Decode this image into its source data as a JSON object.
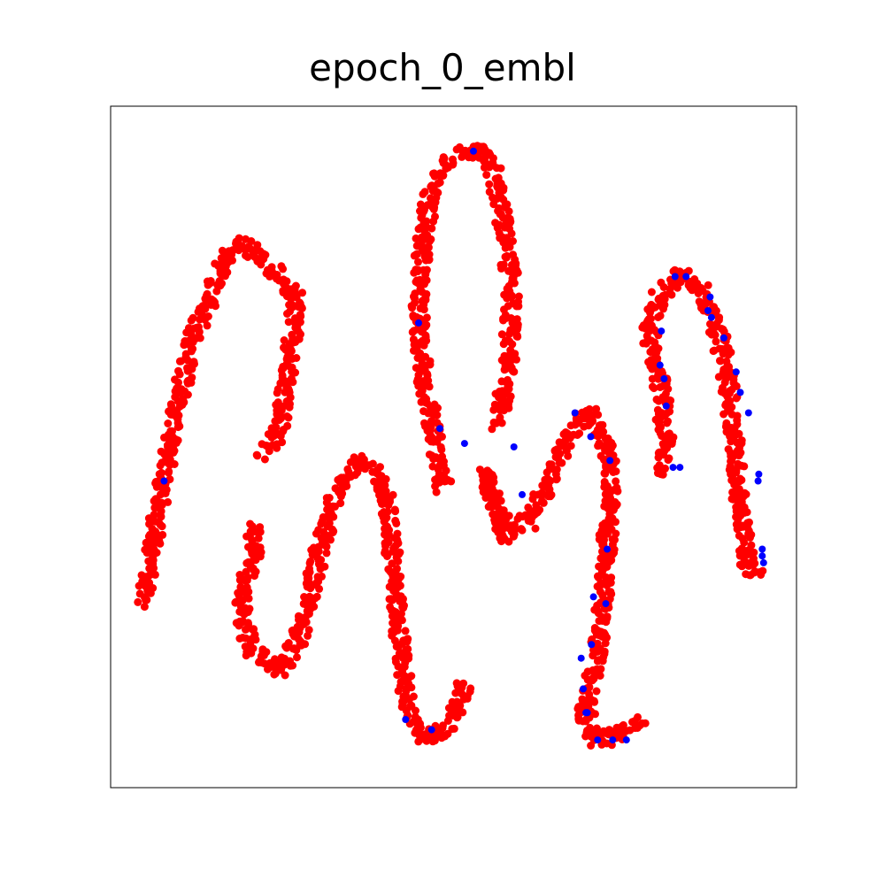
{
  "chart_data": {
    "type": "scatter",
    "title": "epoch_0_embl",
    "xlabel": "",
    "ylabel": "",
    "xlim": [
      0,
      1
    ],
    "ylim": [
      0,
      1
    ],
    "ticks": "none",
    "grid": false,
    "legend": "none",
    "colors": {
      "primary": "#ff0000",
      "secondary": "#0000ff"
    },
    "series": [
      {
        "color": "#ff0000",
        "curves": [
          [
            [
              0.046,
              0.275
            ],
            [
              0.058,
              0.33
            ],
            [
              0.075,
              0.44
            ],
            [
              0.095,
              0.55
            ],
            [
              0.115,
              0.64
            ],
            [
              0.14,
              0.71
            ],
            [
              0.165,
              0.77
            ],
            [
              0.19,
              0.8
            ],
            [
              0.215,
              0.78
            ],
            [
              0.27,
              0.72
            ],
            [
              0.26,
              0.6
            ],
            [
              0.245,
              0.52
            ],
            [
              0.22,
              0.49
            ]
          ],
          [
            [
              0.215,
              0.38
            ],
            [
              0.2,
              0.32
            ],
            [
              0.19,
              0.25
            ],
            [
              0.21,
              0.2
            ],
            [
              0.245,
              0.17
            ],
            [
              0.275,
              0.22
            ],
            [
              0.295,
              0.3
            ],
            [
              0.31,
              0.37
            ],
            [
              0.335,
              0.45
            ],
            [
              0.365,
              0.48
            ],
            [
              0.39,
              0.46
            ],
            [
              0.405,
              0.4
            ],
            [
              0.415,
              0.3
            ],
            [
              0.425,
              0.18
            ],
            [
              0.44,
              0.1
            ],
            [
              0.46,
              0.07
            ],
            [
              0.5,
              0.1
            ],
            [
              0.52,
              0.16
            ]
          ],
          [
            [
              0.485,
              0.44
            ],
            [
              0.475,
              0.5
            ],
            [
              0.46,
              0.58
            ],
            [
              0.452,
              0.65
            ],
            [
              0.45,
              0.72
            ],
            [
              0.455,
              0.8
            ],
            [
              0.465,
              0.87
            ],
            [
              0.49,
              0.92
            ],
            [
              0.53,
              0.94
            ],
            [
              0.56,
              0.9
            ],
            [
              0.575,
              0.82
            ],
            [
              0.585,
              0.72
            ],
            [
              0.58,
              0.62
            ],
            [
              0.57,
              0.55
            ],
            [
              0.565,
              0.53
            ]
          ],
          [
            [
              0.575,
              0.38
            ],
            [
              0.56,
              0.42
            ],
            [
              0.545,
              0.46
            ],
            [
              0.555,
              0.43
            ],
            [
              0.58,
              0.37
            ],
            [
              0.61,
              0.39
            ],
            [
              0.64,
              0.45
            ],
            [
              0.67,
              0.52
            ],
            [
              0.695,
              0.55
            ],
            [
              0.72,
              0.52
            ],
            [
              0.73,
              0.45
            ],
            [
              0.725,
              0.38
            ],
            [
              0.72,
              0.3
            ],
            [
              0.715,
              0.24
            ],
            [
              0.705,
              0.17
            ],
            [
              0.69,
              0.11
            ],
            [
              0.71,
              0.07
            ],
            [
              0.745,
              0.08
            ],
            [
              0.775,
              0.1
            ]
          ],
          [
            [
              0.808,
              0.46
            ],
            [
              0.81,
              0.52
            ],
            [
              0.8,
              0.6
            ],
            [
              0.785,
              0.67
            ],
            [
              0.8,
              0.72
            ],
            [
              0.83,
              0.75
            ],
            [
              0.86,
              0.73
            ],
            [
              0.885,
              0.67
            ],
            [
              0.9,
              0.6
            ],
            [
              0.91,
              0.5
            ],
            [
              0.92,
              0.4
            ],
            [
              0.93,
              0.32
            ],
            [
              0.95,
              0.32
            ]
          ]
        ]
      },
      {
        "color": "#0000ff",
        "points": [
          [
            0.078,
            0.45
          ],
          [
            0.529,
            0.934
          ],
          [
            0.449,
            0.682
          ],
          [
            0.48,
            0.527
          ],
          [
            0.43,
            0.1
          ],
          [
            0.468,
            0.085
          ],
          [
            0.516,
            0.505
          ],
          [
            0.588,
            0.5
          ],
          [
            0.6,
            0.43
          ],
          [
            0.677,
            0.55
          ],
          [
            0.7,
            0.515
          ],
          [
            0.728,
            0.48
          ],
          [
            0.724,
            0.35
          ],
          [
            0.722,
            0.27
          ],
          [
            0.704,
            0.28
          ],
          [
            0.701,
            0.21
          ],
          [
            0.686,
            0.19
          ],
          [
            0.689,
            0.145
          ],
          [
            0.693,
            0.11
          ],
          [
            0.695,
            0.11
          ],
          [
            0.71,
            0.07
          ],
          [
            0.732,
            0.07
          ],
          [
            0.752,
            0.07
          ],
          [
            0.803,
            0.67
          ],
          [
            0.807,
            0.6
          ],
          [
            0.801,
            0.62
          ],
          [
            0.81,
            0.56
          ],
          [
            0.82,
            0.47
          ],
          [
            0.83,
            0.47
          ],
          [
            0.839,
            0.75
          ],
          [
            0.823,
            0.75
          ],
          [
            0.874,
            0.72
          ],
          [
            0.871,
            0.7
          ],
          [
            0.876,
            0.69
          ],
          [
            0.894,
            0.66
          ],
          [
            0.912,
            0.61
          ],
          [
            0.918,
            0.58
          ],
          [
            0.93,
            0.55
          ],
          [
            0.945,
            0.46
          ],
          [
            0.944,
            0.45
          ],
          [
            0.95,
            0.35
          ],
          [
            0.952,
            0.33
          ],
          [
            0.95,
            0.34
          ]
        ]
      }
    ]
  }
}
